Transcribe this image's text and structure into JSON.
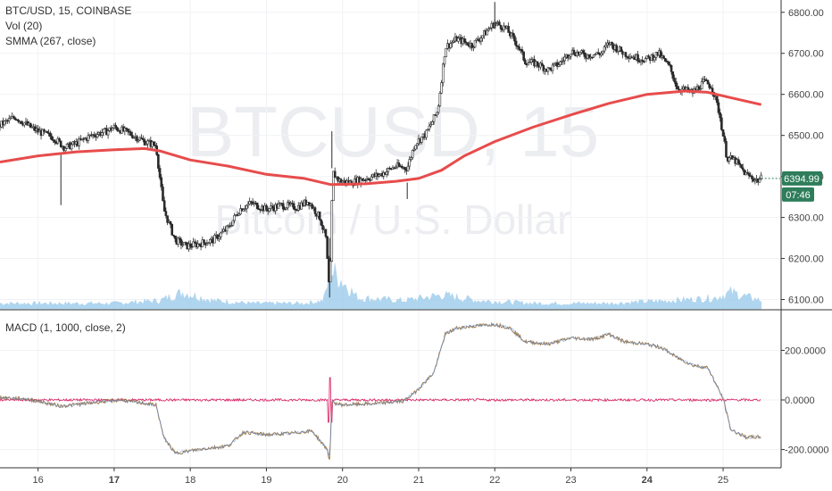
{
  "chart_data": [
    {
      "type": "candlestick",
      "symbol_header": "BTC/USD, 15, COINBASE",
      "watermark_ticker": "BTCUSD, 15",
      "watermark_name": "Bitcoin / U.S. Dollar",
      "indicators": [
        "Vol (20)",
        "SMMA (267, close)"
      ],
      "ylim": [
        6075,
        6830
      ],
      "yticks": [
        "6800.00",
        "6700.00",
        "6600.00",
        "6500.00",
        "6400.00",
        "6300.00",
        "6200.00",
        "6100.00"
      ],
      "ytick_values": [
        6800,
        6700,
        6600,
        6500,
        6400,
        6300,
        6200,
        6100
      ],
      "last_price": "6394.99",
      "last_price_value": 6395,
      "countdown": "07:46",
      "price_path": [
        [
          15.5,
          6525
        ],
        [
          15.7,
          6545
        ],
        [
          15.9,
          6520
        ],
        [
          16.0,
          6510
        ],
        [
          16.2,
          6495
        ],
        [
          16.35,
          6470
        ],
        [
          16.5,
          6480
        ],
        [
          16.7,
          6500
        ],
        [
          16.9,
          6510
        ],
        [
          17.0,
          6520
        ],
        [
          17.2,
          6505
        ],
        [
          17.4,
          6485
        ],
        [
          17.55,
          6475
        ],
        [
          17.65,
          6320
        ],
        [
          17.8,
          6245
        ],
        [
          17.95,
          6230
        ],
        [
          18.1,
          6235
        ],
        [
          18.3,
          6245
        ],
        [
          18.5,
          6275
        ],
        [
          18.65,
          6320
        ],
        [
          18.8,
          6335
        ],
        [
          19.0,
          6320
        ],
        [
          19.2,
          6330
        ],
        [
          19.4,
          6325
        ],
        [
          19.55,
          6340
        ],
        [
          19.7,
          6300
        ],
        [
          19.78,
          6250
        ],
        [
          19.83,
          6110
        ],
        [
          19.87,
          6410
        ],
        [
          19.95,
          6390
        ],
        [
          20.1,
          6385
        ],
        [
          20.3,
          6395
        ],
        [
          20.5,
          6405
        ],
        [
          20.7,
          6425
        ],
        [
          20.85,
          6420
        ],
        [
          20.95,
          6480
        ],
        [
          21.1,
          6505
        ],
        [
          21.25,
          6560
        ],
        [
          21.35,
          6715
        ],
        [
          21.5,
          6735
        ],
        [
          21.7,
          6720
        ],
        [
          21.85,
          6745
        ],
        [
          22.0,
          6775
        ],
        [
          22.15,
          6760
        ],
        [
          22.3,
          6720
        ],
        [
          22.4,
          6680
        ],
        [
          22.55,
          6675
        ],
        [
          22.7,
          6660
        ],
        [
          22.85,
          6675
        ],
        [
          23.0,
          6705
        ],
        [
          23.2,
          6695
        ],
        [
          23.4,
          6700
        ],
        [
          23.5,
          6725
        ],
        [
          23.7,
          6700
        ],
        [
          23.85,
          6690
        ],
        [
          24.0,
          6685
        ],
        [
          24.15,
          6700
        ],
        [
          24.3,
          6665
        ],
        [
          24.4,
          6615
        ],
        [
          24.6,
          6605
        ],
        [
          24.75,
          6630
        ],
        [
          24.85,
          6620
        ],
        [
          24.95,
          6555
        ],
        [
          25.05,
          6445
        ],
        [
          25.15,
          6440
        ],
        [
          25.3,
          6405
        ],
        [
          25.45,
          6390
        ],
        [
          25.5,
          6395
        ]
      ],
      "spikes": [
        [
          16.3,
          6455,
          6330
        ],
        [
          19.83,
          6250,
          6105
        ],
        [
          19.86,
          6420,
          6510
        ],
        [
          20.85,
          6385,
          6345
        ],
        [
          22.0,
          6760,
          6825
        ]
      ],
      "smma_path": [
        [
          15.5,
          6435
        ],
        [
          16.0,
          6450
        ],
        [
          16.5,
          6460
        ],
        [
          17.0,
          6465
        ],
        [
          17.4,
          6468
        ],
        [
          17.6,
          6462
        ],
        [
          18.0,
          6440
        ],
        [
          18.5,
          6425
        ],
        [
          19.0,
          6405
        ],
        [
          19.5,
          6395
        ],
        [
          19.85,
          6380
        ],
        [
          20.3,
          6382
        ],
        [
          20.7,
          6388
        ],
        [
          21.0,
          6395
        ],
        [
          21.3,
          6415
        ],
        [
          21.6,
          6450
        ],
        [
          22.0,
          6485
        ],
        [
          22.5,
          6520
        ],
        [
          23.0,
          6550
        ],
        [
          23.5,
          6578
        ],
        [
          24.0,
          6600
        ],
        [
          24.5,
          6608
        ],
        [
          24.8,
          6605
        ],
        [
          25.1,
          6592
        ],
        [
          25.5,
          6575
        ]
      ],
      "volume_path": [
        [
          15.5,
          2
        ],
        [
          16.0,
          2
        ],
        [
          17.0,
          2
        ],
        [
          17.6,
          3
        ],
        [
          17.9,
          6
        ],
        [
          18.3,
          3
        ],
        [
          18.8,
          2
        ],
        [
          19.5,
          2
        ],
        [
          19.75,
          3
        ],
        [
          19.85,
          14
        ],
        [
          20.0,
          10
        ],
        [
          20.2,
          4
        ],
        [
          20.8,
          3
        ],
        [
          21.3,
          5
        ],
        [
          21.8,
          3
        ],
        [
          22.5,
          2
        ],
        [
          23.5,
          2
        ],
        [
          24.3,
          3
        ],
        [
          24.9,
          4
        ],
        [
          25.1,
          6
        ],
        [
          25.5,
          3
        ]
      ],
      "volume_max": 15
    },
    {
      "type": "line",
      "title": "MACD (1, 1000, close, 2)",
      "ylim": [
        -270,
        360
      ],
      "yticks": [
        "200.0000",
        "0.0000",
        "-200.0000"
      ],
      "ytick_values": [
        200,
        0,
        -200
      ],
      "macd_path": [
        [
          15.5,
          10
        ],
        [
          15.8,
          5
        ],
        [
          16.0,
          -5
        ],
        [
          16.3,
          -25
        ],
        [
          16.6,
          -15
        ],
        [
          16.9,
          -5
        ],
        [
          17.1,
          0
        ],
        [
          17.3,
          -10
        ],
        [
          17.55,
          -20
        ],
        [
          17.65,
          -150
        ],
        [
          17.8,
          -215
        ],
        [
          18.1,
          -200
        ],
        [
          18.5,
          -185
        ],
        [
          18.7,
          -130
        ],
        [
          19.0,
          -140
        ],
        [
          19.3,
          -135
        ],
        [
          19.6,
          -125
        ],
        [
          19.8,
          -200
        ],
        [
          19.83,
          -245
        ],
        [
          19.86,
          -10
        ],
        [
          20.0,
          -20
        ],
        [
          20.4,
          -15
        ],
        [
          20.8,
          -5
        ],
        [
          20.95,
          30
        ],
        [
          21.2,
          110
        ],
        [
          21.35,
          265
        ],
        [
          21.5,
          290
        ],
        [
          21.8,
          300
        ],
        [
          22.0,
          305
        ],
        [
          22.2,
          290
        ],
        [
          22.4,
          235
        ],
        [
          22.7,
          225
        ],
        [
          23.0,
          250
        ],
        [
          23.3,
          245
        ],
        [
          23.5,
          265
        ],
        [
          23.7,
          235
        ],
        [
          24.0,
          225
        ],
        [
          24.2,
          210
        ],
        [
          24.4,
          170
        ],
        [
          24.6,
          140
        ],
        [
          24.8,
          130
        ],
        [
          25.0,
          5
        ],
        [
          25.1,
          -120
        ],
        [
          25.3,
          -150
        ],
        [
          25.5,
          -150
        ]
      ],
      "signal_path": [
        [
          15.5,
          0
        ],
        [
          25.5,
          0
        ]
      ]
    }
  ],
  "x_axis": {
    "labels": [
      "16",
      "17",
      "18",
      "19",
      "20",
      "21",
      "22",
      "23",
      "24",
      "25"
    ],
    "values": [
      16,
      17,
      18,
      19,
      20,
      21,
      22,
      23,
      24,
      25
    ],
    "bold": [
      "17",
      "24"
    ],
    "xlim": [
      15.5,
      25.75
    ]
  },
  "colors": {
    "candle_up": "#2f2f2f",
    "smma": "#e74c4c",
    "volume": "#9ccbec",
    "macd": "#9c7a4e",
    "signal": "#d81b60",
    "price_badge": "#2e7d5b",
    "axis_line": "#333333",
    "grid": "#f1f2f5"
  }
}
